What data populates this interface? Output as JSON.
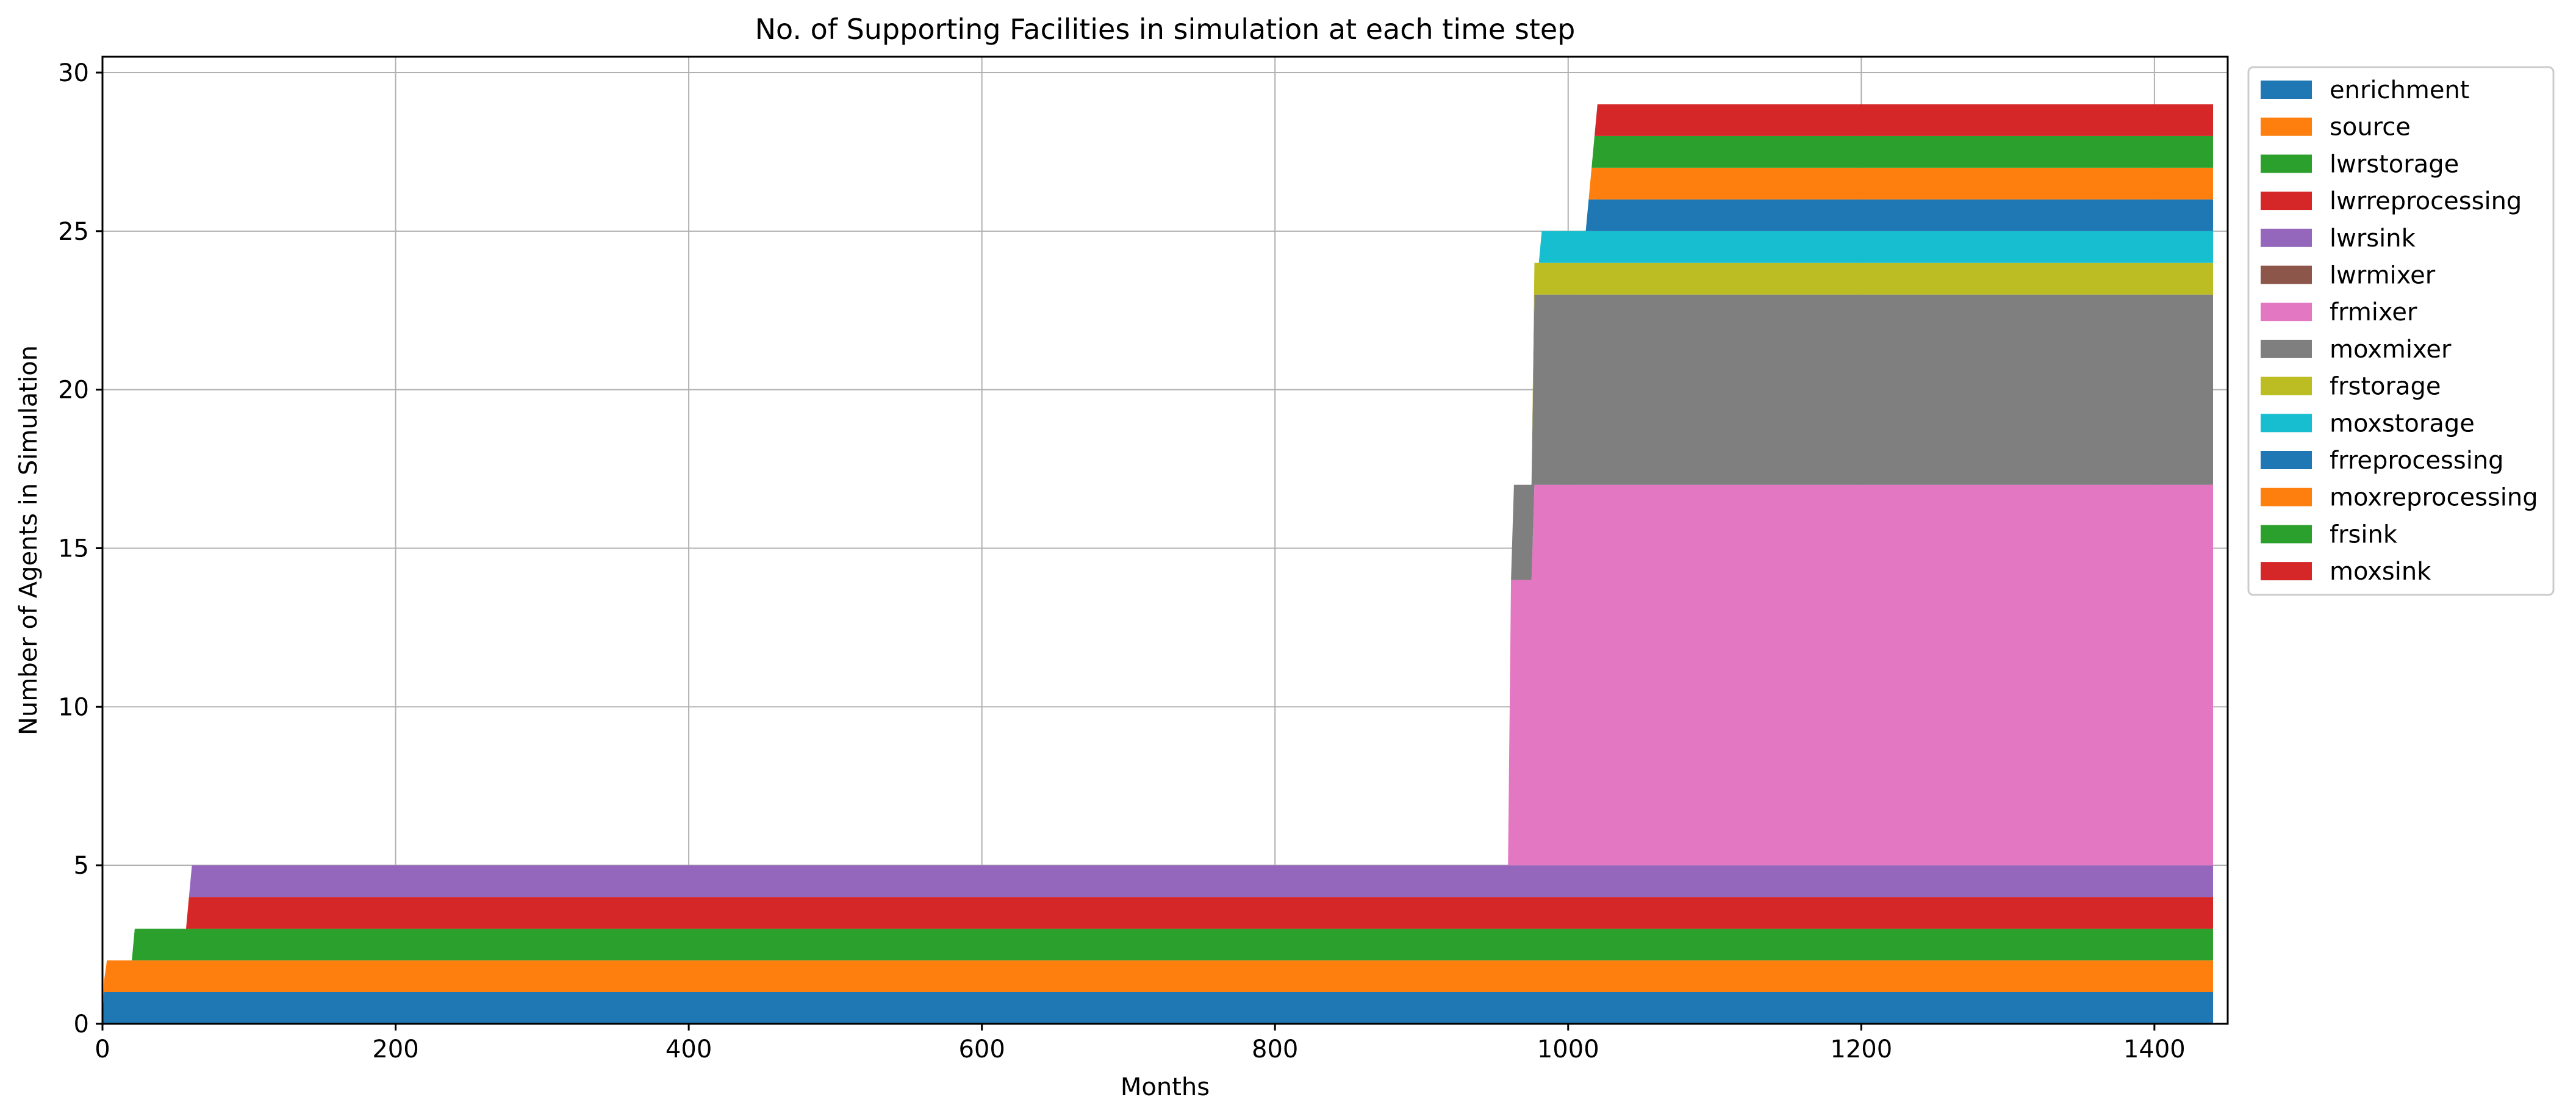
{
  "chart_data": {
    "type": "area",
    "title": "No. of Supporting Facilities in simulation at each time step",
    "xlabel": "Months",
    "ylabel": "Number of Agents in Simulation",
    "xlim": [
      0,
      1450
    ],
    "ylim": [
      0,
      30.5
    ],
    "xticks": [
      0,
      200,
      400,
      600,
      800,
      1000,
      1200,
      1400
    ],
    "yticks": [
      0,
      5,
      10,
      15,
      20,
      25,
      30
    ],
    "grid": true,
    "legend_position": "outside-top-right",
    "stacked": true,
    "x_end": 1440,
    "series": [
      {
        "name": "enrichment",
        "color": "#1f77b4",
        "points": [
          [
            0,
            0
          ],
          [
            1,
            1
          ]
        ]
      },
      {
        "name": "source",
        "color": "#ff7f0e",
        "points": [
          [
            0,
            0
          ],
          [
            3,
            1
          ]
        ]
      },
      {
        "name": "lwrstorage",
        "color": "#2ca02c",
        "points": [
          [
            0,
            0
          ],
          [
            20,
            0
          ],
          [
            22,
            1
          ]
        ]
      },
      {
        "name": "lwrreprocessing",
        "color": "#d62728",
        "points": [
          [
            0,
            0
          ],
          [
            57,
            0
          ],
          [
            59,
            1
          ]
        ]
      },
      {
        "name": "lwrsink",
        "color": "#9467bd",
        "points": [
          [
            0,
            0
          ],
          [
            59,
            0
          ],
          [
            61,
            1
          ]
        ]
      },
      {
        "name": "lwrmixer",
        "color": "#8c564b",
        "points": [
          [
            0,
            0
          ]
        ]
      },
      {
        "name": "frmixer",
        "color": "#e377c2",
        "points": [
          [
            0,
            0
          ],
          [
            959,
            0
          ],
          [
            961,
            9
          ],
          [
            975,
            9
          ],
          [
            977,
            12
          ]
        ]
      },
      {
        "name": "moxmixer",
        "color": "#7f7f7f",
        "points": [
          [
            0,
            0
          ],
          [
            961,
            0
          ],
          [
            963,
            3
          ],
          [
            975,
            3
          ],
          [
            977,
            6
          ]
        ]
      },
      {
        "name": "frstorage",
        "color": "#bcbd22",
        "points": [
          [
            0,
            0
          ],
          [
            975,
            0
          ],
          [
            977,
            1
          ]
        ]
      },
      {
        "name": "moxstorage",
        "color": "#17becf",
        "points": [
          [
            0,
            0
          ],
          [
            980,
            0
          ],
          [
            982,
            1
          ]
        ]
      },
      {
        "name": "frreprocessing",
        "color": "#1f77b4",
        "points": [
          [
            0,
            0
          ],
          [
            1012,
            0
          ],
          [
            1014,
            1
          ]
        ]
      },
      {
        "name": "moxreprocessing",
        "color": "#ff7f0e",
        "points": [
          [
            0,
            0
          ],
          [
            1014,
            0
          ],
          [
            1016,
            1
          ]
        ]
      },
      {
        "name": "frsink",
        "color": "#2ca02c",
        "points": [
          [
            0,
            0
          ],
          [
            1016,
            0
          ],
          [
            1018,
            1
          ]
        ]
      },
      {
        "name": "moxsink",
        "color": "#d62728",
        "points": [
          [
            0,
            0
          ],
          [
            1018,
            0
          ],
          [
            1020,
            1
          ]
        ]
      }
    ]
  }
}
